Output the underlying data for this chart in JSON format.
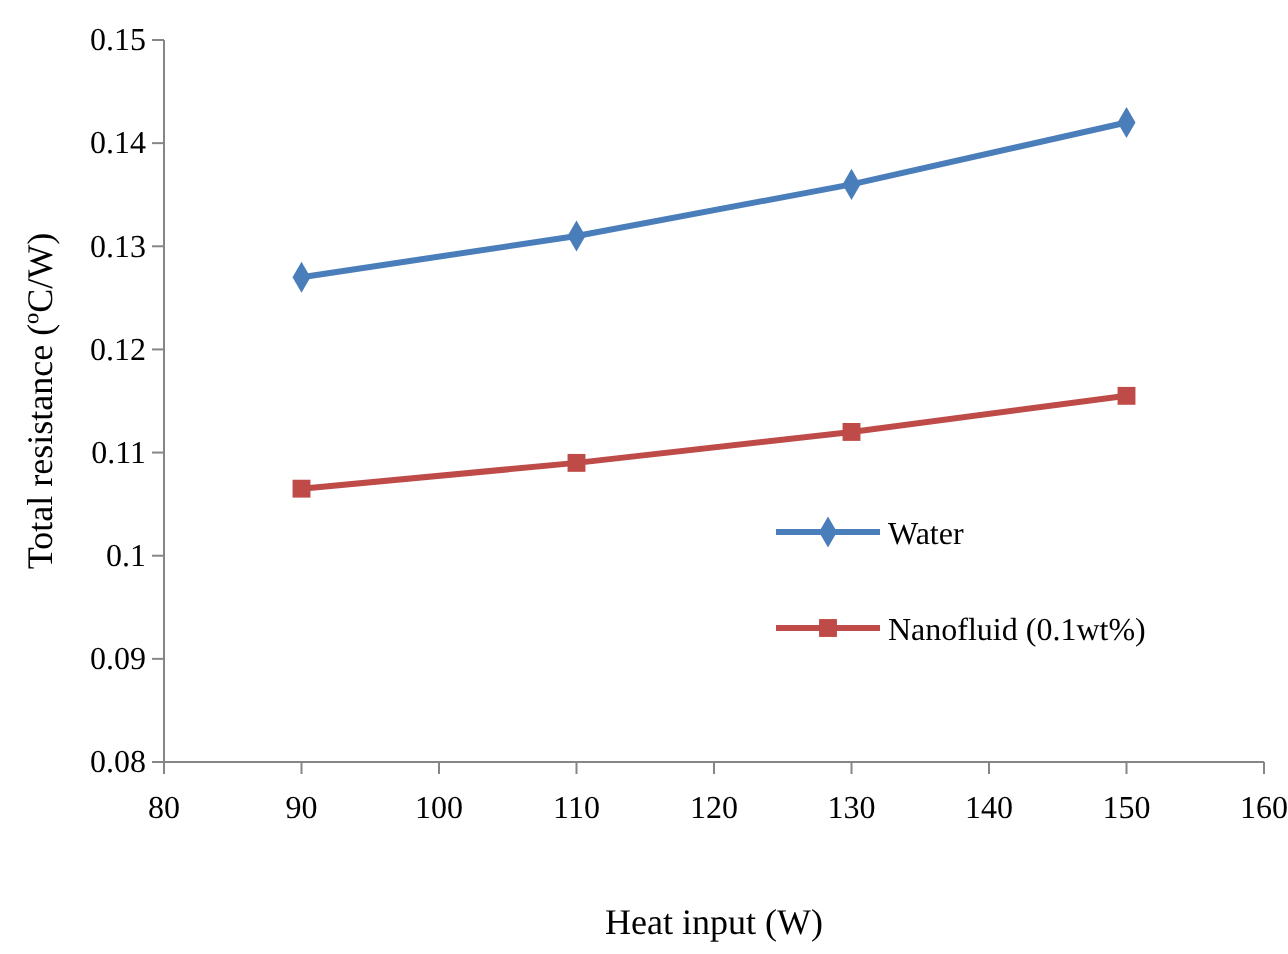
{
  "chart_data": {
    "type": "line",
    "xlabel": "Heat input (W)",
    "ylabel": "Total resistance (ºC/W)",
    "x": [
      90,
      110,
      130,
      150
    ],
    "series": [
      {
        "name": "Water",
        "color": "#4a7ebb",
        "marker": "diamond",
        "values": [
          0.127,
          0.131,
          0.136,
          0.142
        ]
      },
      {
        "name": "Nanofluid (0.1wt%)",
        "color": "#be4b48",
        "marker": "square",
        "values": [
          0.1065,
          0.109,
          0.112,
          0.1155
        ]
      }
    ],
    "xlim": [
      80,
      160
    ],
    "xticks": [
      80,
      90,
      100,
      110,
      120,
      130,
      140,
      150,
      160
    ],
    "ylim": [
      0.08,
      0.15
    ],
    "yticks": [
      0.08,
      0.09,
      {
        "value": 0.1,
        "label": "0.1"
      },
      0.11,
      0.12,
      0.13,
      0.14,
      0.15
    ],
    "grid": false,
    "legend": "right",
    "line_style": "solid"
  }
}
